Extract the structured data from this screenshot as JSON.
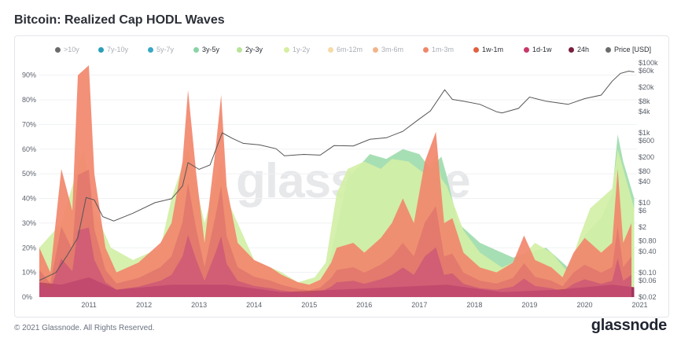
{
  "title": "Bitcoin: Realized Cap HODL Waves",
  "footer": "© 2021 Glassnode. All Rights Reserved.",
  "brand": "glassnode",
  "watermark": "glassnode",
  "chart_data": {
    "type": "area",
    "title": "Bitcoin: Realized Cap HODL Waves",
    "x_range": [
      "2010-07",
      "2021-05"
    ],
    "x_ticks": [
      "2011",
      "2012",
      "2013",
      "2014",
      "2015",
      "2016",
      "2017",
      "2018",
      "2019",
      "2020",
      "2021"
    ],
    "y_left": {
      "ticks": [
        "0%",
        "10%",
        "20%",
        "30%",
        "40%",
        "50%",
        "60%",
        "70%",
        "80%",
        "90%"
      ],
      "range": [
        0,
        95
      ]
    },
    "y_right": {
      "scale": "log",
      "ticks": [
        {
          "label": "$0.02",
          "value": 0.02
        },
        {
          "label": "$0.06",
          "value": 0.06
        },
        {
          "label": "$0.10",
          "value": 0.1
        },
        {
          "label": "$0.40",
          "value": 0.4
        },
        {
          "label": "$0.80",
          "value": 0.8
        },
        {
          "label": "$2",
          "value": 2
        },
        {
          "label": "$6",
          "value": 6
        },
        {
          "label": "$10",
          "value": 10
        },
        {
          "label": "$40",
          "value": 40
        },
        {
          "label": "$80",
          "value": 80
        },
        {
          "label": "$200",
          "value": 200
        },
        {
          "label": "$600",
          "value": 600
        },
        {
          "label": "$1k",
          "value": 1000
        },
        {
          "label": "$4k",
          "value": 4000
        },
        {
          "label": "$8k",
          "value": 8000
        },
        {
          "label": "$20k",
          "value": 20000
        },
        {
          "label": "$60k",
          "value": 60000
        },
        {
          "label": "$100k",
          "value": 100000
        }
      ]
    },
    "legend": [
      {
        "name": ">10y",
        "color": "#6b6b6b",
        "active": false
      },
      {
        "name": "7y-10y",
        "color": "#2a9fb8",
        "active": false
      },
      {
        "name": "5y-7y",
        "color": "#3aa7c4",
        "active": false
      },
      {
        "name": "3y-5y",
        "color": "#88d4a6",
        "active": true
      },
      {
        "name": "2y-3y",
        "color": "#b8e39a",
        "active": true
      },
      {
        "name": "1y-2y",
        "color": "#d5ef9f",
        "active": false
      },
      {
        "name": "6m-12m",
        "color": "#f5d9a8",
        "active": false
      },
      {
        "name": "3m-6m",
        "color": "#f2b48a",
        "active": false
      },
      {
        "name": "1m-3m",
        "color": "#f0876a",
        "active": false
      },
      {
        "name": "1w-1m",
        "color": "#e0603f",
        "active": true
      },
      {
        "name": "1d-1w",
        "color": "#c8386a",
        "active": true
      },
      {
        "name": "24h",
        "color": "#7a1f3d",
        "active": true
      },
      {
        "name": "Price [USD]",
        "color": "#6b6b6b",
        "active": true
      }
    ],
    "colors": {
      "band_3y_5y": "#9fdcae",
      "band_2y_3y": "#d3efa6",
      "band_1m_3m": "#f2876d",
      "band_1w_1m": "#d96a6a",
      "band_1d_1w": "#c3477a",
      "band_24h": "#9b2556",
      "price": "#555555"
    },
    "series": [
      {
        "name": "3y-5y",
        "x": [
          2015.8,
          2016.2,
          2016.6,
          2016.9,
          2017.2,
          2017.5,
          2017.7,
          2017.9,
          2018.0,
          2018.2,
          2018.6,
          2019.2,
          2019.8,
          2020.2,
          2020.5,
          2020.8,
          2021.0,
          2021.1,
          2021.2,
          2021.4
        ],
        "values": [
          8,
          48,
          58,
          56,
          60,
          58,
          52,
          57,
          49,
          30,
          22,
          16,
          20,
          12,
          25,
          32,
          42,
          66,
          55,
          40
        ]
      },
      {
        "name": "2y-3y",
        "x": [
          2010.6,
          2011.0,
          2011.4,
          2011.6,
          2011.9,
          2012.3,
          2012.8,
          2013.0,
          2013.3,
          2013.6,
          2013.9,
          2014.0,
          2014.5,
          2015.0,
          2015.3,
          2015.6,
          2015.8,
          2016.0,
          2016.2,
          2016.5,
          2016.8,
          2017.0,
          2017.3,
          2017.6,
          2017.8,
          2017.9,
          2018.0,
          2018.3,
          2018.6,
          2019.0,
          2019.3,
          2019.6,
          2019.9,
          2020.2,
          2020.4,
          2020.6,
          2020.8,
          2021.0,
          2021.1,
          2021.2,
          2021.4
        ],
        "values": [
          20,
          30,
          60,
          35,
          20,
          15,
          20,
          40,
          60,
          30,
          55,
          40,
          15,
          10,
          6,
          8,
          14,
          42,
          52,
          55,
          52,
          56,
          55,
          50,
          58,
          48,
          45,
          27,
          18,
          12,
          15,
          22,
          18,
          10,
          24,
          36,
          40,
          44,
          60,
          52,
          36
        ]
      },
      {
        "name": "1m-3m",
        "x": [
          2010.6,
          2010.8,
          2011.0,
          2011.2,
          2011.3,
          2011.5,
          2011.6,
          2011.8,
          2012.0,
          2012.4,
          2012.8,
          2013.0,
          2013.2,
          2013.3,
          2013.45,
          2013.6,
          2013.8,
          2013.9,
          2014.0,
          2014.2,
          2014.5,
          2014.8,
          2015.0,
          2015.3,
          2015.5,
          2015.7,
          2015.9,
          2016.0,
          2016.3,
          2016.5,
          2016.8,
          2017.0,
          2017.2,
          2017.4,
          2017.6,
          2017.8,
          2017.95,
          2018.1,
          2018.3,
          2018.6,
          2018.9,
          2019.2,
          2019.4,
          2019.6,
          2019.9,
          2020.1,
          2020.3,
          2020.5,
          2020.8,
          2021.0,
          2021.1,
          2021.2,
          2021.35
        ],
        "values": [
          20,
          10,
          52,
          35,
          90,
          94,
          50,
          20,
          10,
          14,
          22,
          30,
          55,
          84,
          50,
          22,
          60,
          82,
          45,
          22,
          15,
          12,
          9,
          6,
          5,
          7,
          14,
          20,
          22,
          18,
          24,
          30,
          40,
          30,
          55,
          67,
          30,
          32,
          18,
          12,
          10,
          14,
          25,
          15,
          12,
          8,
          18,
          24,
          18,
          22,
          52,
          22,
          30
        ]
      },
      {
        "name": "24h",
        "x": [
          2010.6,
          2011.0,
          2011.5,
          2012.0,
          2013.0,
          2014.0,
          2015.0,
          2016.0,
          2017.0,
          2018.0,
          2019.0,
          2020.0,
          2021.0,
          2021.4
        ],
        "values": [
          6,
          5,
          8,
          3,
          5,
          5,
          2,
          3,
          4,
          5,
          2,
          3,
          5,
          4
        ]
      },
      {
        "name": "Price [USD]",
        "x": [
          2010.6,
          2010.9,
          2011.1,
          2011.3,
          2011.45,
          2011.6,
          2011.75,
          2011.95,
          2012.3,
          2012.7,
          2013.0,
          2013.2,
          2013.3,
          2013.5,
          2013.7,
          2013.92,
          2014.1,
          2014.3,
          2014.6,
          2014.9,
          2015.05,
          2015.4,
          2015.7,
          2015.95,
          2016.3,
          2016.6,
          2016.9,
          2017.2,
          2017.5,
          2017.7,
          2017.96,
          2018.1,
          2018.3,
          2018.6,
          2018.9,
          2019.0,
          2019.3,
          2019.5,
          2019.8,
          2020.0,
          2020.2,
          2020.5,
          2020.8,
          2021.0,
          2021.15,
          2021.3,
          2021.4
        ],
        "values": [
          0.06,
          0.1,
          0.3,
          1,
          14,
          12,
          4,
          3,
          5,
          10,
          13,
          30,
          140,
          90,
          120,
          1000,
          700,
          500,
          450,
          350,
          220,
          240,
          230,
          430,
          420,
          650,
          720,
          1100,
          2500,
          4200,
          17000,
          9000,
          8000,
          6500,
          4000,
          3700,
          5000,
          10500,
          8000,
          7200,
          6500,
          9500,
          12000,
          30000,
          50000,
          58000,
          55000
        ]
      }
    ]
  }
}
